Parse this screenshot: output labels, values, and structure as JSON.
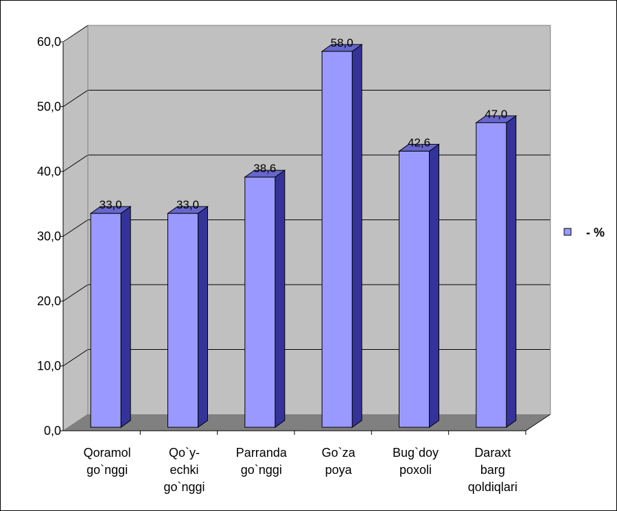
{
  "chart_data": {
    "type": "bar",
    "style": "3d-column",
    "categories": [
      [
        "Qoramol",
        "go`nggi"
      ],
      [
        "Qo`y-",
        "echki",
        "go`nggi"
      ],
      [
        "Parranda",
        "go`nggi"
      ],
      [
        "Go`za",
        "poya"
      ],
      [
        "Bug`doy",
        "poxoli"
      ],
      [
        "Daraxt",
        "barg",
        "qoldiqlari"
      ]
    ],
    "values": [
      33.0,
      33.0,
      38.6,
      58.0,
      42.6,
      47.0
    ],
    "data_labels": [
      "33,0",
      "33,0",
      "38,6",
      "58,0",
      "42,6",
      "47,0"
    ],
    "series": [
      {
        "name": "- %",
        "values": [
          33.0,
          33.0,
          38.6,
          58.0,
          42.6,
          47.0
        ]
      }
    ],
    "yticks": [
      "0,0",
      "10,0",
      "20,0",
      "30,0",
      "40,0",
      "50,0",
      "60,0"
    ],
    "ylim": [
      0,
      60
    ],
    "title": "",
    "xlabel": "",
    "ylabel": "",
    "grid": true,
    "legend_position": "right",
    "colors": {
      "bar_front": "#9999ff",
      "bar_side": "#333399",
      "bar_top": "#6666cc",
      "wall": "#c0c0c0",
      "floor": "#808080",
      "gridline": "#000000"
    }
  },
  "legend": {
    "label": "- %"
  }
}
